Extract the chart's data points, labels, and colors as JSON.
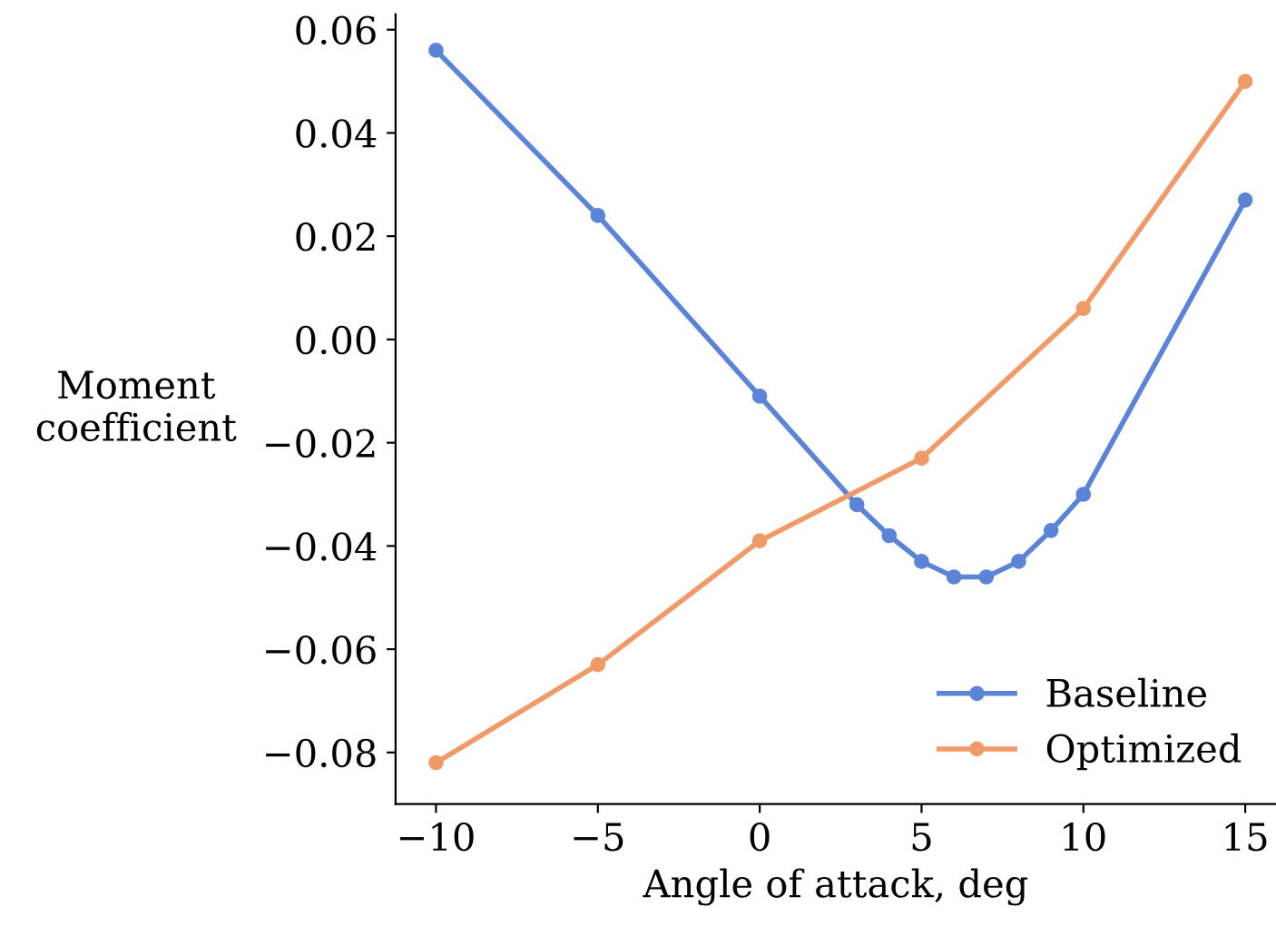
{
  "chart_data": {
    "type": "line",
    "xlabel": "Angle of attack, deg",
    "ylabel": "Moment\ncoefficient",
    "series": [
      {
        "name": "Baseline",
        "color": "#5b84d6",
        "x": [
          -10,
          -5,
          0,
          3,
          4,
          5,
          6,
          7,
          8,
          9,
          10,
          15
        ],
        "values": [
          0.056,
          0.024,
          -0.011,
          -0.032,
          -0.038,
          -0.043,
          -0.046,
          -0.046,
          -0.043,
          -0.037,
          -0.03,
          0.027
        ]
      },
      {
        "name": "Optimized",
        "color": "#f09a68",
        "x": [
          -10,
          -5,
          0,
          5,
          10,
          15
        ],
        "values": [
          -0.082,
          -0.063,
          -0.039,
          -0.023,
          0.006,
          0.05
        ]
      }
    ],
    "xlim": [
      -11.25,
      15.95
    ],
    "ylim": [
      -0.09,
      0.063
    ],
    "xticks": [
      {
        "value": -10,
        "label": "−10"
      },
      {
        "value": -5,
        "label": "−5"
      },
      0,
      5,
      10,
      15
    ],
    "yticks": [
      {
        "value": -0.08,
        "label": "−0.08"
      },
      {
        "value": -0.06,
        "label": "−0.06"
      },
      {
        "value": -0.04,
        "label": "−0.04"
      },
      {
        "value": -0.02,
        "label": "−0.02"
      },
      {
        "value": 0,
        "label": "0.00"
      },
      {
        "value": 0.02,
        "label": "0.02"
      },
      {
        "value": 0.04,
        "label": "0.04"
      },
      {
        "value": 0.06,
        "label": "0.06"
      }
    ],
    "marker": "circle",
    "line_style": "solid",
    "legend": "bottom right",
    "grid": false
  }
}
